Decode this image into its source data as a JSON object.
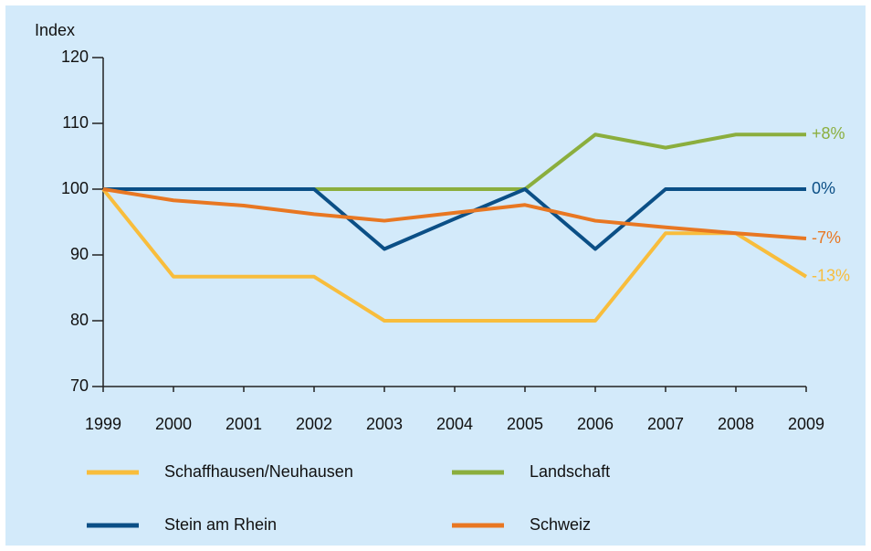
{
  "chart_data": {
    "type": "line",
    "y_label": "Index",
    "x": [
      1999,
      2000,
      2001,
      2002,
      2003,
      2004,
      2005,
      2006,
      2007,
      2008,
      2009
    ],
    "xlim": [
      1999,
      2009
    ],
    "xticks": [
      1999,
      2000,
      2001,
      2002,
      2003,
      2004,
      2005,
      2006,
      2007,
      2008,
      2009
    ],
    "ylim": [
      70,
      120
    ],
    "yticks": [
      70,
      80,
      90,
      100,
      110,
      120
    ],
    "series": [
      {
        "name": "Schaffhausen/Neuhausen",
        "color": "#f8bd3c",
        "annotation": "-13%",
        "values": [
          100,
          86.7,
          86.7,
          86.7,
          80,
          80,
          80,
          80,
          93.3,
          93.3,
          86.7
        ]
      },
      {
        "name": "Landschaft",
        "color": "#8bae3d",
        "annotation": "+8%",
        "values": [
          100,
          100,
          100,
          100,
          100,
          100,
          100,
          108.3,
          106.3,
          108.3,
          108.3
        ]
      },
      {
        "name": "Stein am Rhein",
        "color": "#0b4f86",
        "annotation": "0%",
        "values": [
          100,
          100,
          100,
          100,
          90.9,
          95.5,
          100,
          90.9,
          100,
          100,
          100
        ]
      },
      {
        "name": "Schweiz",
        "color": "#e87722",
        "annotation": "-7%",
        "values": [
          100,
          98.3,
          97.5,
          96.2,
          95.2,
          96.4,
          97.6,
          95.2,
          94.2,
          93.3,
          92.5
        ]
      }
    ]
  }
}
